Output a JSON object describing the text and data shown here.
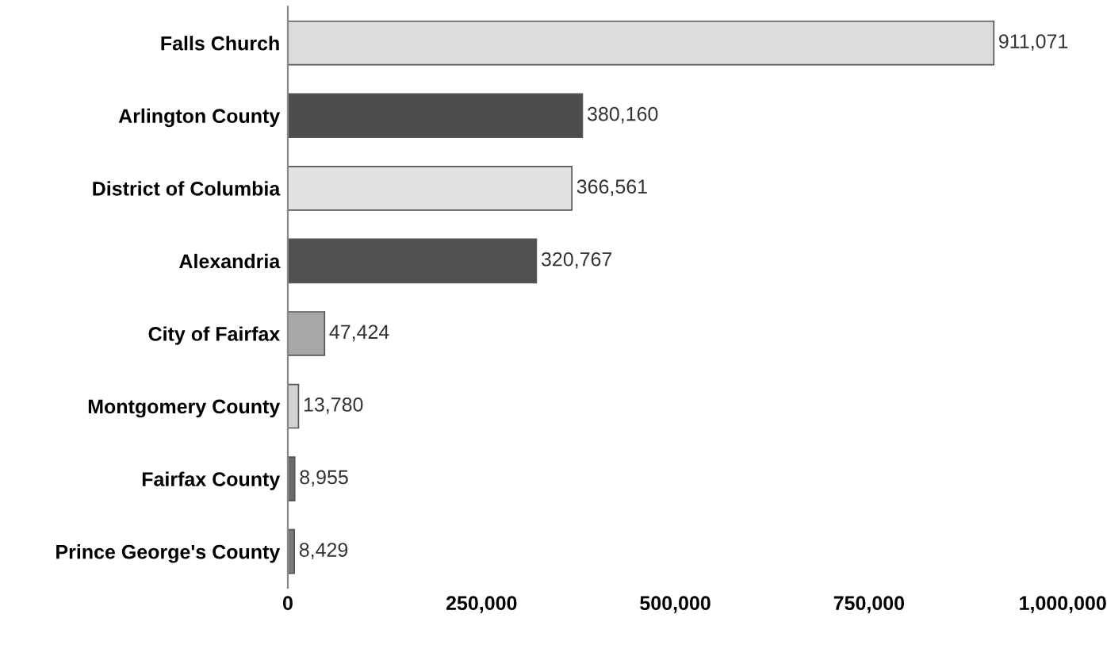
{
  "chart_data": {
    "type": "bar",
    "orientation": "horizontal",
    "categories": [
      "Falls Church",
      "Arlington County",
      "District of Columbia",
      "Alexandria",
      "City of Fairfax",
      "Montgomery County",
      "Fairfax County",
      "Prince George's County"
    ],
    "values": [
      911071,
      380160,
      366561,
      320767,
      47424,
      13780,
      8955,
      8429
    ],
    "value_labels": [
      "911,071",
      "380,160",
      "366,561",
      "320,767",
      "47,424",
      "13,780",
      "8,955",
      "8,429"
    ],
    "colors": [
      "#dcdcdc",
      "#4d4d4d",
      "#e2e2e2",
      "#505050",
      "#a8a8a8",
      "#d2d2d2",
      "#6a6a6a",
      "#7a7a7a"
    ],
    "xlim": [
      0,
      1000000
    ],
    "xticks": [
      0,
      {
        "value": 250000,
        "label": "250,000"
      },
      {
        "value": 500000,
        "label": "500,000"
      },
      {
        "value": 750000,
        "label": "750,000"
      },
      {
        "value": 1000000,
        "label": "1,000,000"
      }
    ],
    "grid": false,
    "legend": false
  }
}
